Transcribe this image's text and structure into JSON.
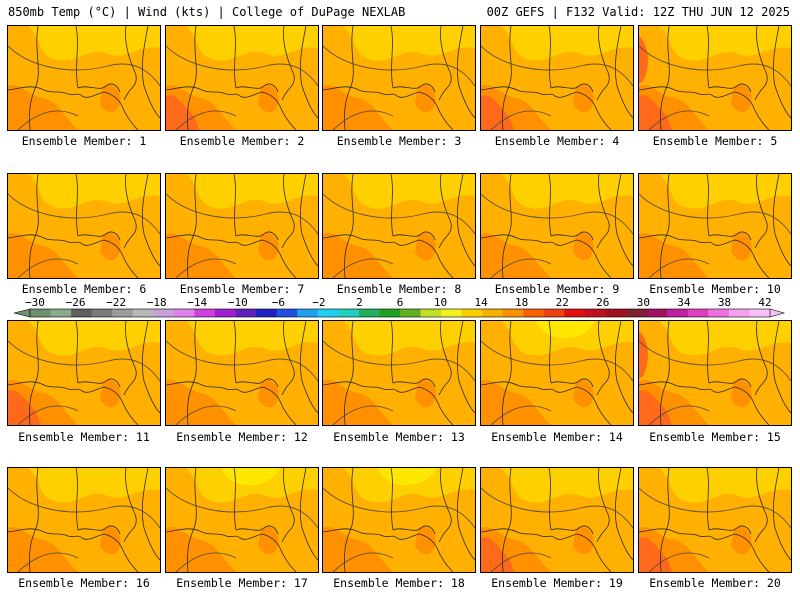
{
  "header": {
    "left_title": "850mb Temp (°C) | Wind (kts) | College of DuPage NEXLAB",
    "right_title": "00Z GEFS | F132 Valid: 12Z THU JUN 12 2025"
  },
  "panels": [
    {
      "label": "Ensemble Member: 1"
    },
    {
      "label": "Ensemble Member: 2"
    },
    {
      "label": "Ensemble Member: 3"
    },
    {
      "label": "Ensemble Member: 4"
    },
    {
      "label": "Ensemble Member: 5"
    },
    {
      "label": "Ensemble Member: 6"
    },
    {
      "label": "Ensemble Member: 7"
    },
    {
      "label": "Ensemble Member: 8"
    },
    {
      "label": "Ensemble Member: 9"
    },
    {
      "label": "Ensemble Member: 10"
    },
    {
      "label": "Ensemble Member: 11"
    },
    {
      "label": "Ensemble Member: 12"
    },
    {
      "label": "Ensemble Member: 13"
    },
    {
      "label": "Ensemble Member: 14"
    },
    {
      "label": "Ensemble Member: 15"
    },
    {
      "label": "Ensemble Member: 16"
    },
    {
      "label": "Ensemble Member: 17"
    },
    {
      "label": "Ensemble Member: 18"
    },
    {
      "label": "Ensemble Member: 19"
    },
    {
      "label": "Ensemble Member: 20"
    }
  ],
  "colorbar": {
    "tick_labels": [
      "−30",
      "−26",
      "−22",
      "−18",
      "−14",
      "−10",
      "−6",
      "−2",
      "2",
      "6",
      "10",
      "14",
      "18",
      "22",
      "26",
      "30",
      "34",
      "38",
      "42"
    ],
    "colors": [
      "#6f8f6f",
      "#8aa88a",
      "#5f5f5f",
      "#7b7b7b",
      "#9b9b9b",
      "#b8b8b8",
      "#c8a0d8",
      "#e080f0",
      "#d040e0",
      "#a020d0",
      "#6020c0",
      "#2020c0",
      "#2050e0",
      "#20a0f0",
      "#20d0f0",
      "#20d0c0",
      "#20b060",
      "#20a020",
      "#60b020",
      "#c0e020",
      "#f0f020",
      "#f8d000",
      "#f8b000",
      "#f89000",
      "#f86000",
      "#f04010",
      "#e01010",
      "#c01020",
      "#a01020",
      "#802030",
      "#a01060",
      "#c020a0",
      "#e040c0",
      "#f070e0",
      "#f8a0f0",
      "#f8c0f8"
    ]
  },
  "field_colors": {
    "light": "#ffd000",
    "mid": "#ffb000",
    "dark": "#ff9000",
    "warm": "#ff6a1a",
    "cool": "#ffe800"
  }
}
